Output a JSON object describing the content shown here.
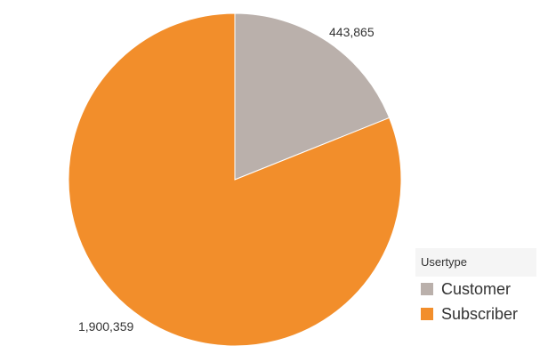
{
  "chart_data": {
    "type": "pie",
    "categories": [
      "Customer",
      "Subscriber"
    ],
    "values": [
      443865,
      1900359
    ],
    "data_labels": [
      "443,865",
      "1,900,359"
    ],
    "colors": [
      "#bab0ab",
      "#f28e2b"
    ],
    "start": "12 o'clock, clockwise",
    "legend": {
      "title": "Usertype",
      "placement": "right-bottom"
    }
  }
}
